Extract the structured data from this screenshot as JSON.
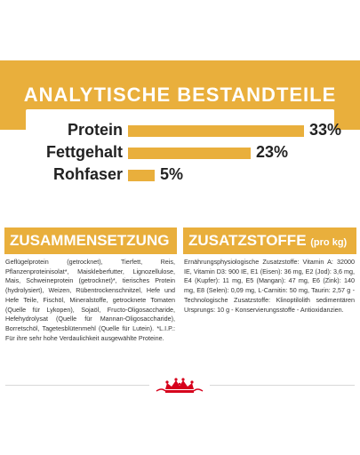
{
  "analysis": {
    "title": "ANALYTISCHE BESTANDTEILE",
    "rows": [
      {
        "label": "Protein",
        "value": "33%",
        "fraction": 0.33
      },
      {
        "label": "Fettgehalt",
        "value": "23%",
        "fraction": 0.23
      },
      {
        "label": "Rohfaser",
        "value": "5%",
        "fraction": 0.05
      }
    ]
  },
  "composition": {
    "title": "ZUSAMMENSETZUNG",
    "text": "Geflügelprotein (getrocknet), Tierfett, Reis, Pflanzenproteinisolat*, Maiskleberfutter, Lignozellulose, Mais, Schweineprotein (getrocknet)*, tierisches Protein (hydrolysiert), Weizen, Rübentrockenschnitzel, Hefe und Hefe Teile, Fischöl, Mineralstoffe, getrocknete Tomaten (Quelle für Lykopen), Sojaöl, Fructo-Oligosaccharide, Hefehydrolysat (Quelle für Mannan-Oligosaccharide), Borretschöl, Tagetesblütenmehl (Quelle für Lutein). *L.I.P.: Für ihre sehr hohe Verdaulichkeit ausgewählte Proteine."
  },
  "additives": {
    "title": "ZUSATZSTOFFE",
    "title_suffix": "(pro kg)",
    "text": "Ernährungsphysiologische Zusatzstoffe: Vitamin A: 32000 IE, Vitamin D3: 900 IE, E1 (Eisen): 36 mg, E2 (Jod): 3,6 mg, E4 (Kupfer): 11 mg, E5 (Mangan): 47 mg, E6 (Zink): 140 mg, E8 (Selen): 0,09 mg, L-Carnitin: 50 mg, Taurin: 2,57 g - Technologische Zusatzstoffe: Klinoptilolith sedimentären Ursprungs: 10 g - Konservierungsstoffe - Antioxidanzien."
  },
  "colors": {
    "accent": "#e9af3c",
    "logo_red": "#d6001c"
  },
  "logo": {
    "name": "crown-logo-icon"
  }
}
